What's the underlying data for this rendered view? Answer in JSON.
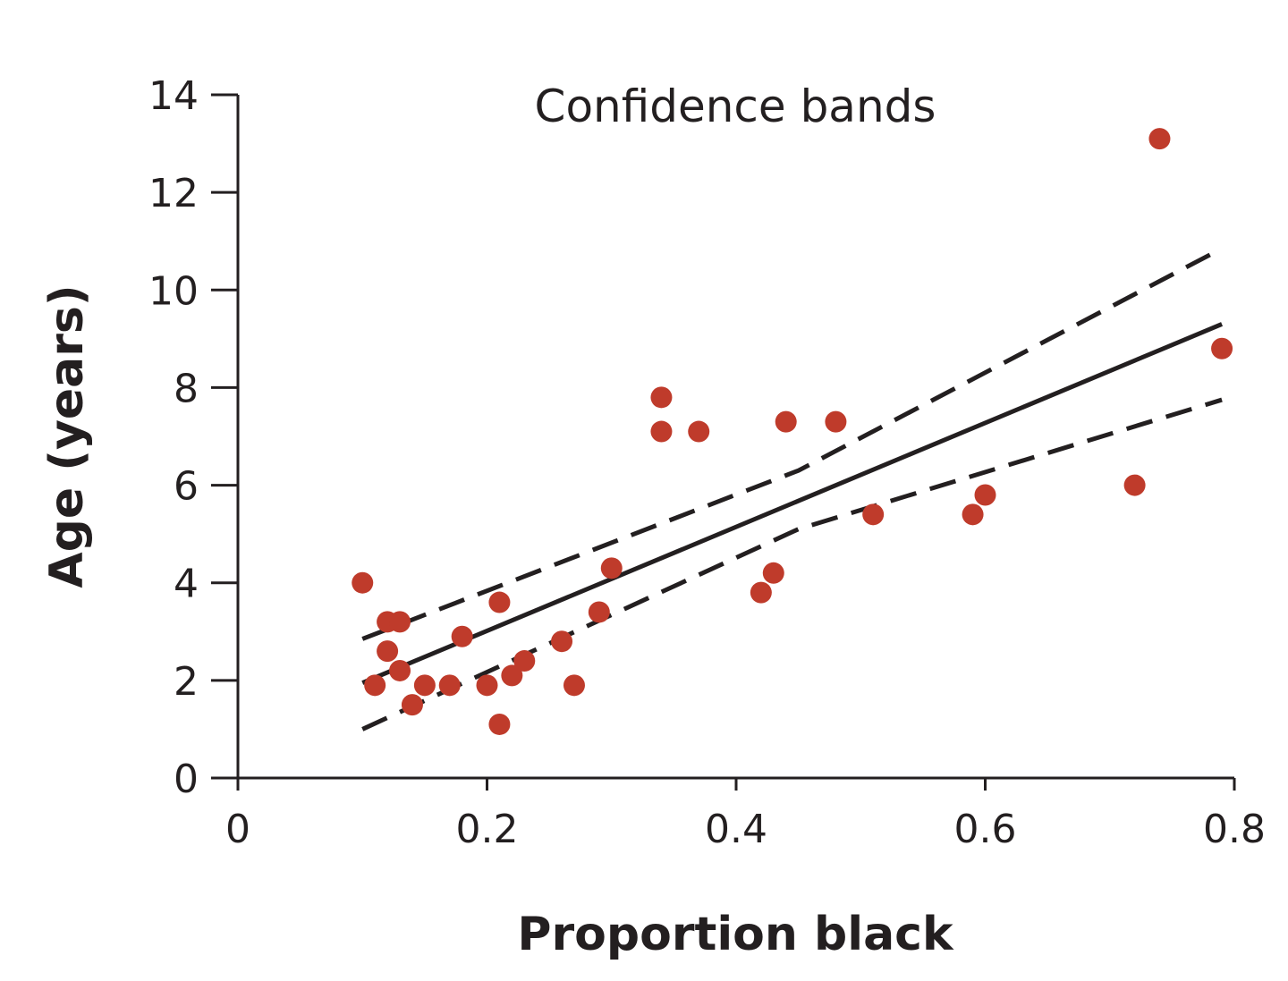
{
  "chart_data": {
    "type": "scatter",
    "title": "Confidence bands",
    "xlabel": "Proportion black",
    "ylabel": "Age (years)",
    "xlim": [
      0,
      0.8
    ],
    "ylim": [
      0,
      14
    ],
    "xticks": [
      0,
      0.2,
      0.4,
      0.6,
      0.8
    ],
    "xtick_labels": [
      "0",
      "0.2",
      "0.4",
      "0.6",
      "0.8"
    ],
    "yticks": [
      0,
      2,
      4,
      6,
      8,
      10,
      12,
      14
    ],
    "ytick_labels": [
      "0",
      "2",
      "4",
      "6",
      "8",
      "10",
      "12",
      "14"
    ],
    "grid": false,
    "point_color": "#bf3b2b",
    "line_color": "#231f20",
    "points": [
      {
        "x": 0.1,
        "y": 4.0
      },
      {
        "x": 0.12,
        "y": 3.2
      },
      {
        "x": 0.13,
        "y": 3.2
      },
      {
        "x": 0.12,
        "y": 2.6
      },
      {
        "x": 0.13,
        "y": 2.2
      },
      {
        "x": 0.11,
        "y": 1.9
      },
      {
        "x": 0.14,
        "y": 1.5
      },
      {
        "x": 0.15,
        "y": 1.9
      },
      {
        "x": 0.17,
        "y": 1.9
      },
      {
        "x": 0.18,
        "y": 2.9
      },
      {
        "x": 0.2,
        "y": 1.9
      },
      {
        "x": 0.21,
        "y": 3.6
      },
      {
        "x": 0.21,
        "y": 1.1
      },
      {
        "x": 0.22,
        "y": 2.1
      },
      {
        "x": 0.23,
        "y": 2.4
      },
      {
        "x": 0.26,
        "y": 2.8
      },
      {
        "x": 0.27,
        "y": 1.9
      },
      {
        "x": 0.29,
        "y": 3.4
      },
      {
        "x": 0.3,
        "y": 4.3
      },
      {
        "x": 0.34,
        "y": 7.8
      },
      {
        "x": 0.34,
        "y": 7.1
      },
      {
        "x": 0.37,
        "y": 7.1
      },
      {
        "x": 0.42,
        "y": 3.8
      },
      {
        "x": 0.43,
        "y": 4.2
      },
      {
        "x": 0.44,
        "y": 7.3
      },
      {
        "x": 0.48,
        "y": 7.3
      },
      {
        "x": 0.51,
        "y": 5.4
      },
      {
        "x": 0.59,
        "y": 5.4
      },
      {
        "x": 0.6,
        "y": 5.8
      },
      {
        "x": 0.72,
        "y": 6.0
      },
      {
        "x": 0.74,
        "y": 13.1
      },
      {
        "x": 0.79,
        "y": 8.8
      }
    ],
    "regression_line": {
      "x": [
        0.1,
        0.79
      ],
      "y": [
        1.95,
        9.3
      ]
    },
    "upper_band": {
      "x": [
        0.1,
        0.45,
        0.79
      ],
      "y": [
        2.85,
        6.3,
        10.85
      ]
    },
    "lower_band": {
      "x": [
        0.1,
        0.45,
        0.79
      ],
      "y": [
        1.0,
        5.1,
        7.75
      ]
    }
  }
}
